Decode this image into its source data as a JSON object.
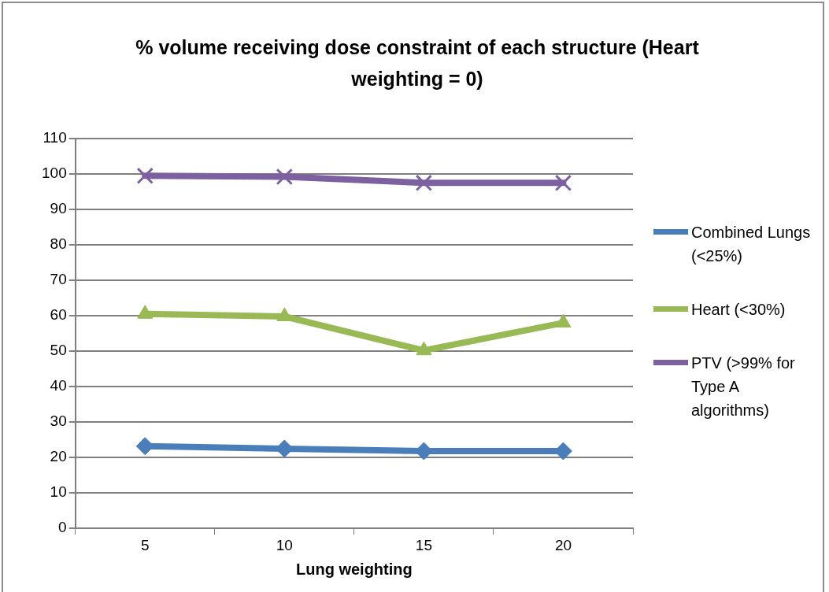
{
  "chart_data": {
    "type": "line",
    "title": "% volume receiving dose constraint of each structure (Heart weighting = 0)",
    "xlabel": "Lung weighting",
    "categories": [
      "5",
      "10",
      "15",
      "20"
    ],
    "series": [
      {
        "name": "Combined Lungs (<25%)",
        "color": "#4a7ebb",
        "marker": "diamond",
        "values": [
          23.2,
          22.5,
          21.8,
          21.8
        ]
      },
      {
        "name": "Heart (<30%)",
        "color": "#98b954",
        "marker": "triangle",
        "values": [
          60.5,
          59.8,
          50.2,
          58.0
        ]
      },
      {
        "name": "PTV (>99% for Type A algorithms)",
        "color": "#7d60a0",
        "marker": "cross",
        "values": [
          99.5,
          99.2,
          97.5,
          97.5
        ]
      }
    ],
    "ylim": [
      0,
      110
    ],
    "yticks": [
      0,
      10,
      20,
      30,
      40,
      50,
      60,
      70,
      80,
      90,
      100,
      110
    ],
    "grid": "y",
    "legend": "right",
    "line_style": "solid"
  }
}
